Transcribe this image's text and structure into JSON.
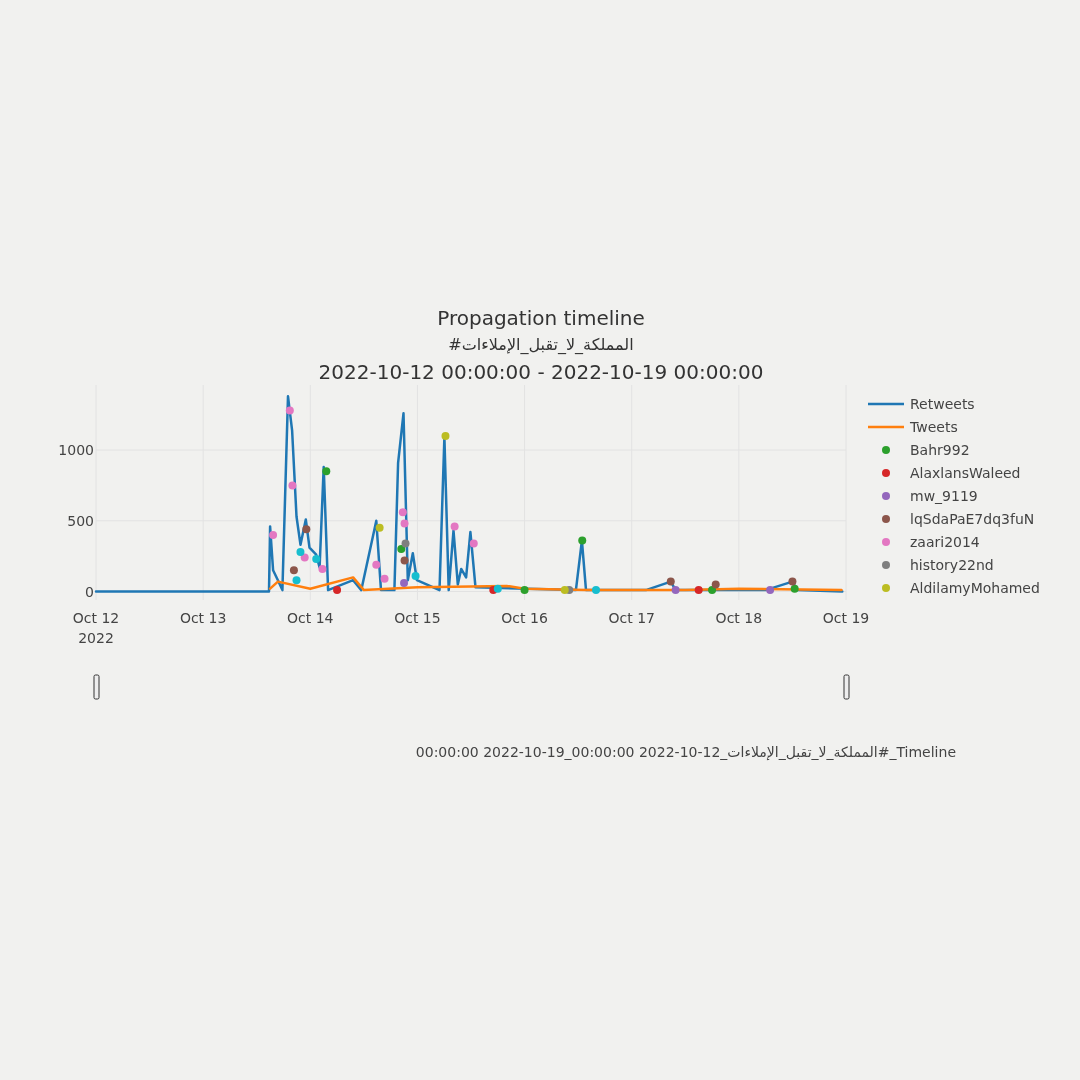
{
  "chart_data": {
    "type": "line",
    "title": "Propagation timeline",
    "subtitle": [
      "#المملكة_لا_تقبل_الإملاءات",
      "2022-10-12 00:00:00 - 2022-10-19 00:00:00"
    ],
    "annotations": [
      "Timeline_#المملكة_لا_تقبل_الإملاءات_12-10-2022 00:00:00_19-10-2022 00:00:00"
    ],
    "xlim": [
      "2022-10-12",
      "2022-10-19"
    ],
    "xticks": [
      {
        "value": "2022-10-12",
        "label": "Oct 12\n2022"
      },
      {
        "value": "2022-10-13",
        "label": "Oct 13"
      },
      {
        "value": "2022-10-14",
        "label": "Oct 14"
      },
      {
        "value": "2022-10-15",
        "label": "Oct 15"
      },
      {
        "value": "2022-10-16",
        "label": "Oct 16"
      },
      {
        "value": "2022-10-17",
        "label": "Oct 17"
      },
      {
        "value": "2022-10-18",
        "label": "Oct 18"
      },
      {
        "value": "2022-10-19",
        "label": "Oct 19"
      }
    ],
    "ylim": [
      -60,
      1460
    ],
    "yticks": [
      0,
      500,
      1000
    ],
    "grid": true,
    "legend": "right",
    "series": [
      {
        "name": "Retweets",
        "color": "#1f77b4",
        "x": [
          "2022-10-12T00:00",
          "2022-10-13T14:45",
          "2022-10-13T15:00",
          "2022-10-13T15:40",
          "2022-10-13T16:45",
          "2022-10-13T17:45",
          "2022-10-13T19:00",
          "2022-10-13T19:55",
          "2022-10-13T20:55",
          "2022-10-13T21:48",
          "2022-10-13T23:00",
          "2022-10-13T23:50",
          "2022-10-14T01:20",
          "2022-10-14T02:05",
          "2022-10-14T03:00",
          "2022-10-14T04:00",
          "2022-10-14T09:35",
          "2022-10-14T11:25",
          "2022-10-14T14:47",
          "2022-10-14T15:50",
          "2022-10-14T18:50",
          "2022-10-14T19:40",
          "2022-10-14T20:53",
          "2022-10-14T21:50",
          "2022-10-14T22:58",
          "2022-10-14T23:53",
          "2022-10-15T04:57",
          "2022-10-15T06:03",
          "2022-10-15T07:00",
          "2022-10-15T08:05",
          "2022-10-15T09:03",
          "2022-10-15T09:48",
          "2022-10-15T10:54",
          "2022-10-15T11:52",
          "2022-10-15T13:00",
          "2022-10-16T11:30",
          "2022-10-16T12:50",
          "2022-10-16T13:45",
          "2022-10-17T03:10",
          "2022-10-17T08:45",
          "2022-10-17T09:50",
          "2022-10-18T06:00",
          "2022-10-18T12:00",
          "2022-10-18T13:05",
          "2022-10-18T23:10"
        ],
        "values": [
          0,
          0,
          460,
          150,
          80,
          10,
          1380,
          1140,
          530,
          330,
          510,
          310,
          260,
          170,
          880,
          10,
          80,
          10,
          500,
          10,
          10,
          910,
          1260,
          80,
          270,
          80,
          10,
          1090,
          10,
          430,
          50,
          160,
          100,
          420,
          30,
          10,
          360,
          10,
          10,
          70,
          10,
          10,
          70,
          10,
          0
        ]
      },
      {
        "name": "Tweets",
        "color": "#ff7f0e",
        "x": [
          "2022-10-13T15:00",
          "2022-10-13T16:45",
          "2022-10-14T00:00",
          "2022-10-14T09:35",
          "2022-10-14T12:00",
          "2022-10-15T00:00",
          "2022-10-15T20:00",
          "2022-10-16T00:00",
          "2022-10-16T14:00",
          "2022-10-17T12:00",
          "2022-10-18T00:00",
          "2022-10-18T23:00"
        ],
        "values": [
          20,
          70,
          20,
          100,
          10,
          30,
          40,
          20,
          10,
          10,
          20,
          10
        ]
      },
      {
        "name": "Bahr992",
        "type": "scatter",
        "marker": "circle",
        "color": "#2ca02c",
        "x": [
          "2022-10-14T03:35",
          "2022-10-14T20:23",
          "2022-10-16T12:55",
          "2022-10-16T00:00",
          "2022-10-17T18:00",
          "2022-10-18T12:30"
        ],
        "values": [
          850,
          300,
          360,
          10,
          10,
          20
        ]
      },
      {
        "name": "AlaxlansWaleed",
        "type": "scatter",
        "marker": "circle",
        "color": "#d62728",
        "x": [
          "2022-10-14T06:00",
          "2022-10-15T17:00",
          "2022-10-17T15:00"
        ],
        "values": [
          10,
          10,
          10
        ]
      },
      {
        "name": "mw_9119",
        "type": "scatter",
        "marker": "circle",
        "color": "#9467bd",
        "x": [
          "2022-10-14T21:00",
          "2022-10-17T09:50",
          "2022-10-18T07:00"
        ],
        "values": [
          60,
          10,
          10
        ]
      },
      {
        "name": "lqSdaPaE7dq3fuN",
        "type": "scatter",
        "marker": "circle",
        "color": "#8c564b",
        "x": [
          "2022-10-13T23:07",
          "2022-10-13T20:20",
          "2022-10-14T21:07",
          "2022-10-17T08:45",
          "2022-10-18T12:00",
          "2022-10-17T18:49"
        ],
        "values": [
          440,
          150,
          220,
          70,
          70,
          50
        ]
      },
      {
        "name": "zaari2014",
        "type": "scatter",
        "marker": "circle",
        "color": "#e377c2",
        "x": [
          "2022-10-13T19:25",
          "2022-10-13T20:00",
          "2022-10-13T15:40",
          "2022-10-13T22:45",
          "2022-10-14T02:43",
          "2022-10-14T14:47",
          "2022-10-14T16:38",
          "2022-10-14T20:44",
          "2022-10-14T21:07",
          "2022-10-15T08:20",
          "2022-10-15T12:37"
        ],
        "values": [
          1280,
          750,
          400,
          240,
          160,
          190,
          90,
          560,
          480,
          460,
          340
        ]
      },
      {
        "name": "history22nd",
        "type": "scatter",
        "marker": "circle",
        "color": "#7f7f7f",
        "x": [
          "2022-10-14T21:20",
          "2022-10-16T10:00"
        ],
        "values": [
          340,
          10
        ]
      },
      {
        "name": "AldilamyMohamed",
        "type": "scatter",
        "marker": "circle",
        "color": "#bcbd22",
        "x": [
          "2022-10-14T15:32",
          "2022-10-15T06:17",
          "2022-10-16T09:00"
        ],
        "values": [
          450,
          1100,
          10
        ]
      },
      {
        "type": "scatter",
        "marker": "circle",
        "color": "#17becf",
        "x": [
          "2022-10-13T21:48",
          "2022-10-14T01:20",
          "2022-10-14T23:35",
          "2022-10-13T20:55",
          "2022-10-15T18:00",
          "2022-10-16T16:00"
        ],
        "values": [
          280,
          230,
          110,
          80,
          20,
          10
        ]
      }
    ]
  }
}
